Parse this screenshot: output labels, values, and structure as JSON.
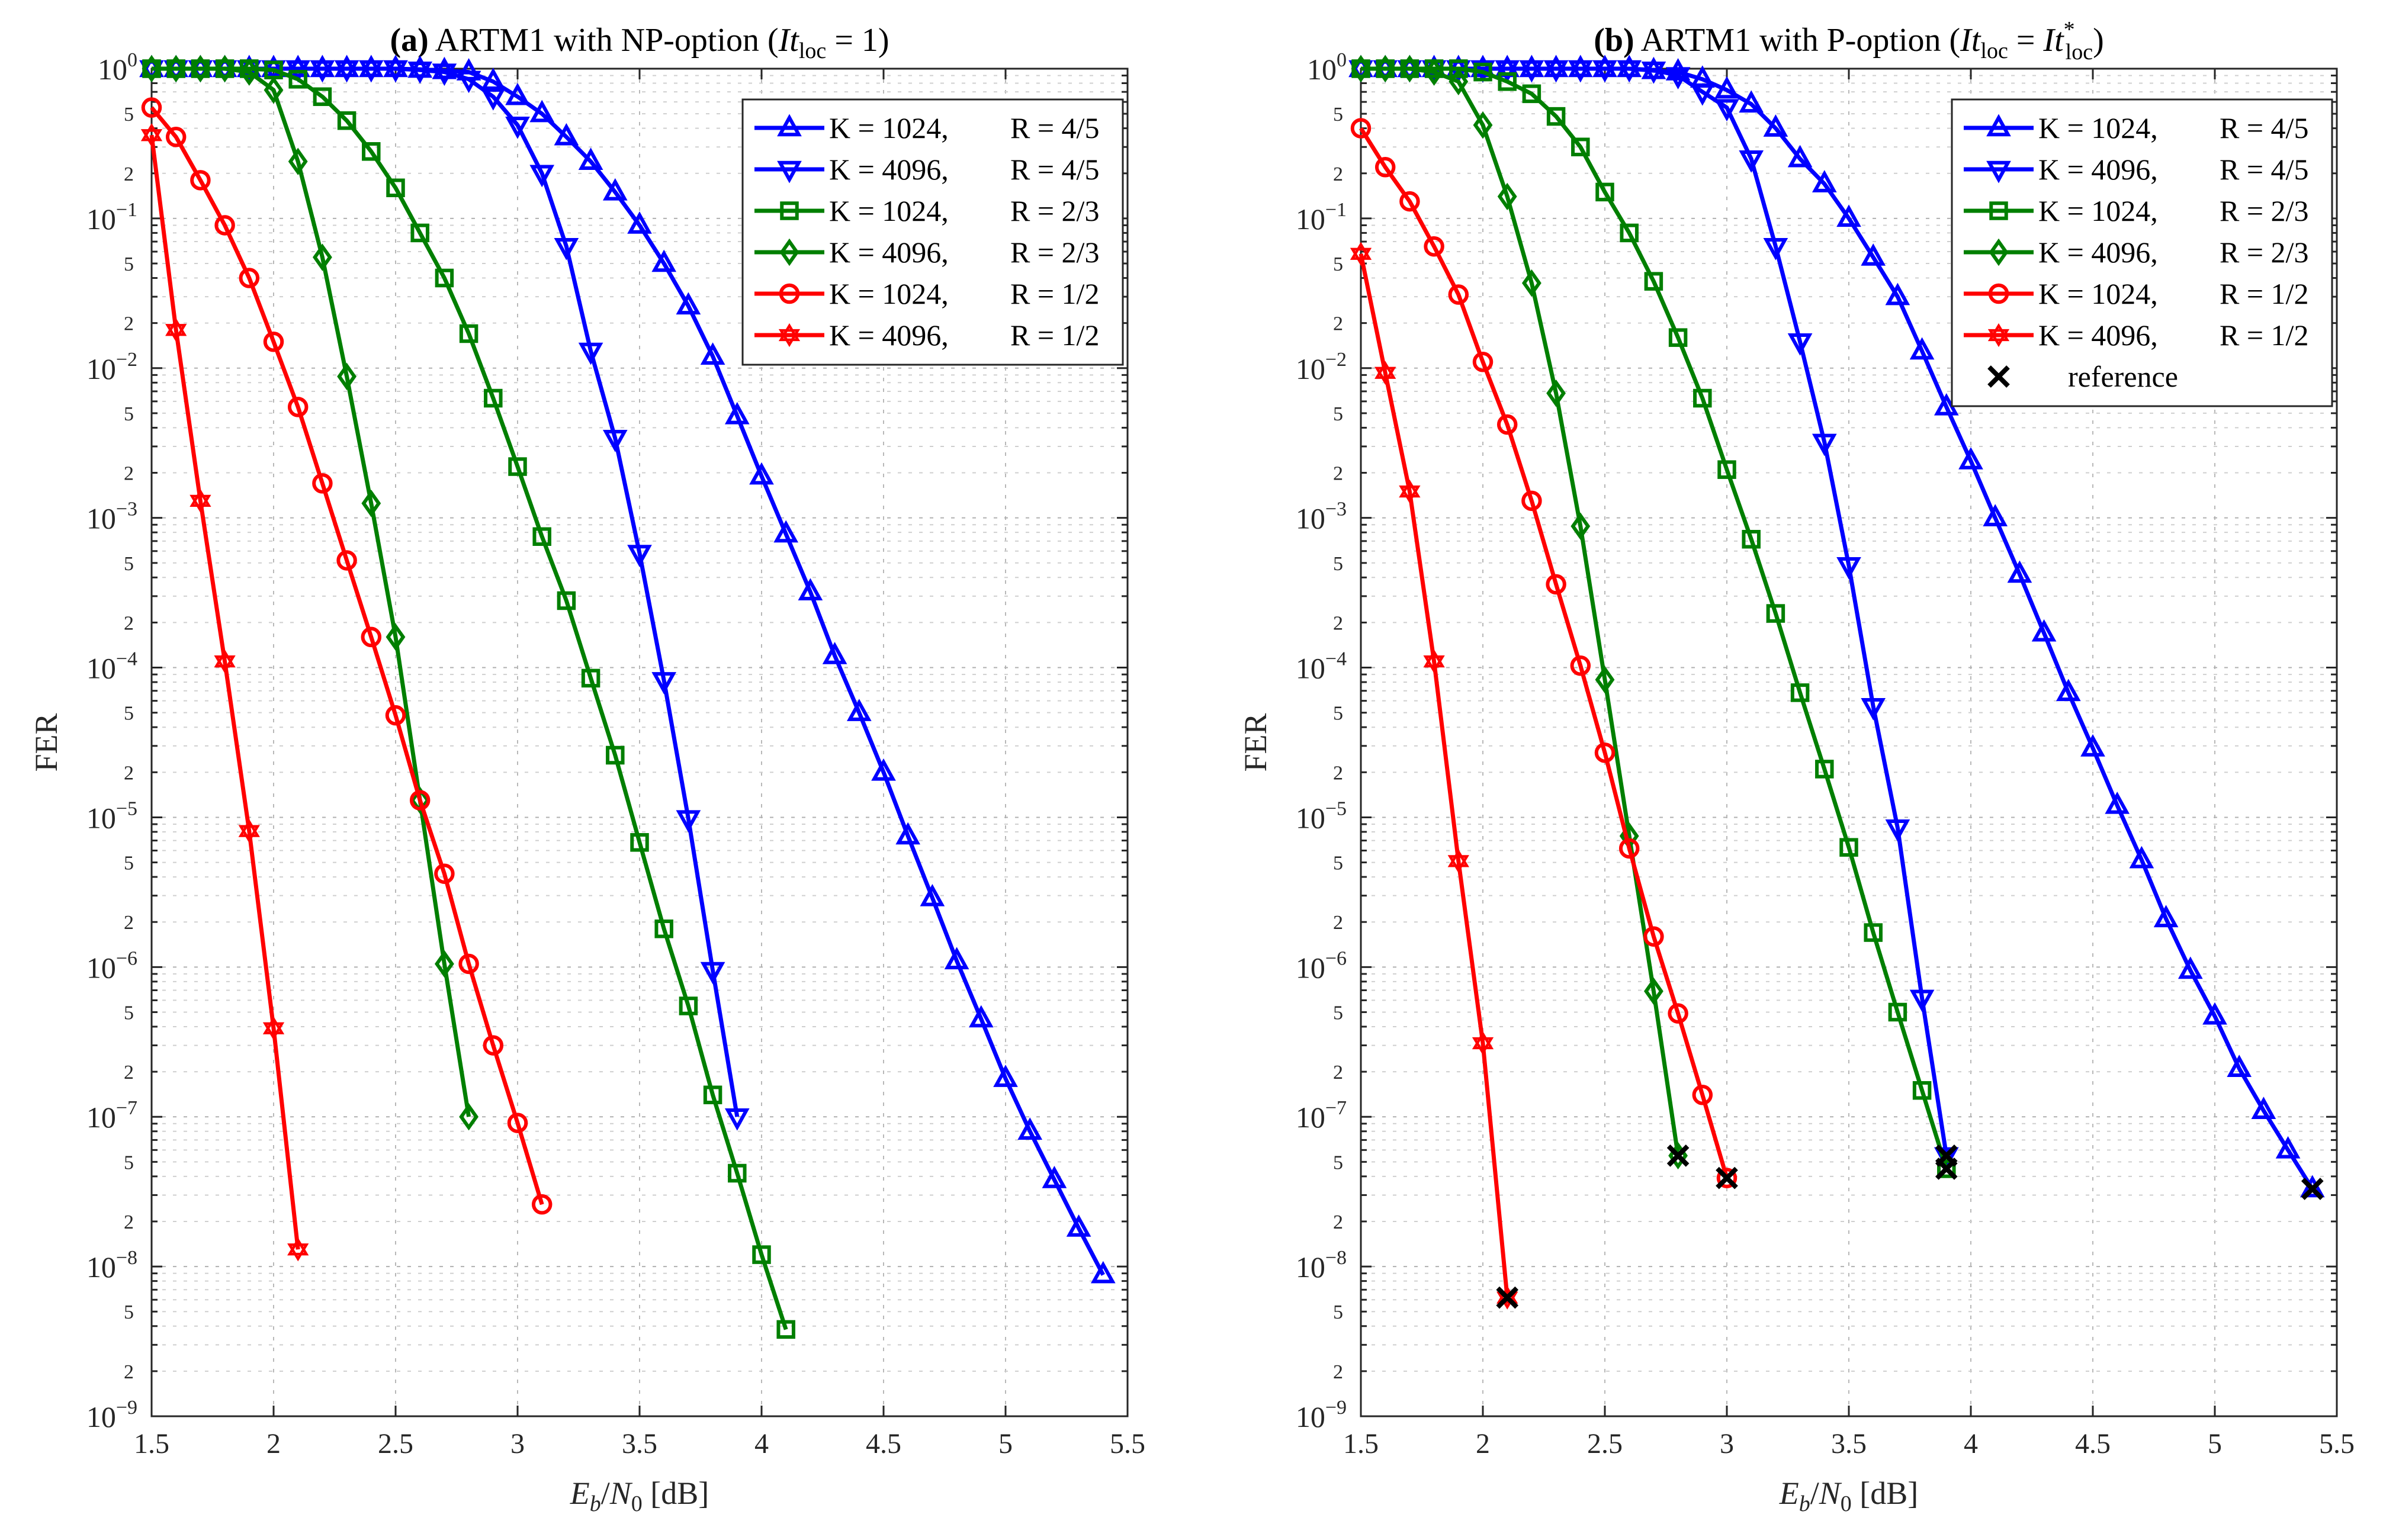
{
  "colors": {
    "blue": "#0000ff",
    "green": "#007f00",
    "red": "#ff0000",
    "reference": "#000000"
  },
  "chart_data": [
    {
      "type": "line",
      "panel_label": "(a)",
      "title_main": " ARTM1 with NP-option (",
      "title_var": "It",
      "title_sub": "loc",
      "title_eq": " = 1)",
      "xlabel_var": "E",
      "xlabel_sub_a": "b",
      "xlabel_slash": "/",
      "xlabel_var2": "N",
      "xlabel_sub_b": "0",
      "xlabel_unit": " [dB]",
      "ylabel": "FER",
      "xlim": [
        1.5,
        5.5
      ],
      "ylim_log10": [
        -9,
        0
      ],
      "xticks": [
        "1.5",
        "2",
        "2.5",
        "3",
        "3.5",
        "4",
        "4.5",
        "5",
        "5.5"
      ],
      "ydecade_base": "10",
      "ydecade_exponents": [
        "0",
        "−1",
        "−2",
        "−3",
        "−4",
        "−5",
        "−6",
        "−7",
        "−8",
        "−9"
      ],
      "yminor_labels": [
        "2",
        "5"
      ],
      "grid": true,
      "legend_position": "top-right",
      "series": [
        {
          "label_k": "K = 1024,",
          "label_r": "R = 4/5",
          "color": "#0000ff",
          "marker": "triangle-up",
          "x": [
            1.5,
            1.6,
            1.7,
            1.8,
            1.9,
            2.0,
            2.1,
            2.2,
            2.3,
            2.4,
            2.5,
            2.6,
            2.7,
            2.8,
            2.9,
            3.0,
            3.1,
            3.2,
            3.3,
            3.4,
            3.5,
            3.6,
            3.7,
            3.8,
            3.9,
            4.0,
            4.1,
            4.2,
            4.3,
            4.4,
            4.5,
            4.6,
            4.7,
            4.8,
            4.9,
            5.0,
            5.1,
            5.2,
            5.3,
            5.4
          ],
          "y": [
            1,
            1,
            1,
            1,
            1,
            1,
            1,
            1,
            1,
            1,
            1,
            0.99,
            0.97,
            0.95,
            0.82,
            0.65,
            0.5,
            0.35,
            0.24,
            0.15,
            0.09,
            0.05,
            0.026,
            0.012,
            0.0048,
            0.0019,
            0.00078,
            0.00032,
            0.00012,
            5e-05,
            2e-05,
            7.5e-06,
            2.9e-06,
            1.1e-06,
            4.5e-07,
            1.8e-07,
            8e-08,
            3.8e-08,
            1.8e-08,
            8.8e-09
          ]
        },
        {
          "label_k": "K = 4096,",
          "label_r": "R = 4/5",
          "color": "#0000ff",
          "marker": "triangle-down",
          "x": [
            1.5,
            1.6,
            1.7,
            1.8,
            1.9,
            2.0,
            2.1,
            2.2,
            2.3,
            2.4,
            2.5,
            2.6,
            2.7,
            2.8,
            2.9,
            3.0,
            3.1,
            3.2,
            3.3,
            3.4,
            3.5,
            3.6,
            3.7,
            3.8,
            3.9
          ],
          "y": [
            1,
            1,
            1,
            1,
            1,
            1,
            1,
            1,
            1,
            1,
            1,
            0.98,
            0.95,
            0.85,
            0.65,
            0.42,
            0.2,
            0.065,
            0.013,
            0.0034,
            0.00058,
            8.2e-05,
            9.8e-06,
            9.5e-07,
            1e-07
          ]
        },
        {
          "label_k": "K = 1024,",
          "label_r": "R = 2/3",
          "color": "#007f00",
          "marker": "square",
          "x": [
            1.5,
            1.6,
            1.7,
            1.8,
            1.9,
            2.0,
            2.1,
            2.2,
            2.3,
            2.4,
            2.5,
            2.6,
            2.7,
            2.8,
            2.9,
            3.0,
            3.1,
            3.2,
            3.3,
            3.4,
            3.5,
            3.6,
            3.7,
            3.8,
            3.9,
            4.0,
            4.1
          ],
          "y": [
            1,
            1,
            1,
            1,
            1,
            0.98,
            0.85,
            0.65,
            0.45,
            0.28,
            0.16,
            0.08,
            0.04,
            0.017,
            0.0063,
            0.0022,
            0.00075,
            0.00028,
            8.5e-05,
            2.6e-05,
            6.8e-06,
            1.8e-06,
            5.5e-07,
            1.4e-07,
            4.2e-08,
            1.2e-08,
            3.8e-09
          ]
        },
        {
          "label_k": "K = 4096,",
          "label_r": "R = 2/3",
          "color": "#007f00",
          "marker": "diamond",
          "x": [
            1.5,
            1.6,
            1.7,
            1.8,
            1.9,
            2.0,
            2.1,
            2.2,
            2.3,
            2.4,
            2.5,
            2.6,
            2.7,
            2.8
          ],
          "y": [
            1,
            1,
            1,
            1,
            0.95,
            0.72,
            0.24,
            0.055,
            0.0088,
            0.00125,
            0.00016,
            1.3e-05,
            1.05e-06,
            1e-07
          ]
        },
        {
          "label_k": "K = 1024,",
          "label_r": "R = 1/2",
          "color": "#ff0000",
          "marker": "circle",
          "x": [
            1.5,
            1.6,
            1.7,
            1.8,
            1.9,
            2.0,
            2.1,
            2.2,
            2.3,
            2.4,
            2.5,
            2.6,
            2.7,
            2.8,
            2.9,
            3.0,
            3.1
          ],
          "y": [
            0.55,
            0.35,
            0.18,
            0.09,
            0.04,
            0.015,
            0.0055,
            0.0017,
            0.00052,
            0.00016,
            4.8e-05,
            1.3e-05,
            4.2e-06,
            1.05e-06,
            3e-07,
            9.1e-08,
            2.6e-08
          ]
        },
        {
          "label_k": "K = 4096,",
          "label_r": "R = 1/2",
          "color": "#ff0000",
          "marker": "hexagram",
          "x": [
            1.5,
            1.6,
            1.7,
            1.8,
            1.9,
            2.0,
            2.1
          ],
          "y": [
            0.36,
            0.018,
            0.0013,
            0.00011,
            8.1e-06,
            3.9e-07,
            1.3e-08
          ]
        }
      ]
    },
    {
      "type": "line",
      "panel_label": "(b)",
      "title_main": " ARTM1 with P-option (",
      "title_var": "It",
      "title_sub": "loc",
      "title_eq": " = ",
      "title_var2": "It",
      "title_sup2": "*",
      "title_sub2": "loc",
      "title_end": ")",
      "xlabel_var": "E",
      "xlabel_sub_a": "b",
      "xlabel_slash": "/",
      "xlabel_var2": "N",
      "xlabel_sub_b": "0",
      "xlabel_unit": " [dB]",
      "ylabel": "FER",
      "xlim": [
        1.5,
        5.5
      ],
      "ylim_log10": [
        -9,
        0
      ],
      "xticks": [
        "1.5",
        "2",
        "2.5",
        "3",
        "3.5",
        "4",
        "4.5",
        "5",
        "5.5"
      ],
      "ydecade_base": "10",
      "ydecade_exponents": [
        "0",
        "−1",
        "−2",
        "−3",
        "−4",
        "−5",
        "−6",
        "−7",
        "−8",
        "−9"
      ],
      "yminor_labels": [
        "2",
        "5"
      ],
      "grid": true,
      "legend_position": "top-right",
      "reference_label": "reference",
      "series": [
        {
          "label_k": "K = 1024,",
          "label_r": "R = 4/5",
          "color": "#0000ff",
          "marker": "triangle-up",
          "x": [
            1.5,
            1.6,
            1.7,
            1.8,
            1.9,
            2.0,
            2.1,
            2.2,
            2.3,
            2.4,
            2.5,
            2.6,
            2.7,
            2.8,
            2.9,
            3.0,
            3.1,
            3.2,
            3.3,
            3.4,
            3.5,
            3.6,
            3.7,
            3.8,
            3.9,
            4.0,
            4.1,
            4.2,
            4.3,
            4.4,
            4.5,
            4.6,
            4.7,
            4.8,
            4.9,
            5.0,
            5.1,
            5.2,
            5.3,
            5.4
          ],
          "y": [
            1,
            1,
            1,
            1,
            1,
            1,
            1,
            1,
            1,
            1,
            1,
            1,
            0.97,
            0.95,
            0.85,
            0.72,
            0.58,
            0.4,
            0.25,
            0.17,
            0.1,
            0.055,
            0.03,
            0.013,
            0.0055,
            0.0024,
            0.001,
            0.00042,
            0.00017,
            6.8e-05,
            2.9e-05,
            1.2e-05,
            5.2e-06,
            2.1e-06,
            9.5e-07,
            4.7e-07,
            2.1e-07,
            1.1e-07,
            6e-08,
            3.3e-08
          ]
        },
        {
          "label_k": "K = 4096,",
          "label_r": "R = 4/5",
          "color": "#0000ff",
          "marker": "triangle-down",
          "x": [
            1.5,
            1.6,
            1.7,
            1.8,
            1.9,
            2.0,
            2.1,
            2.2,
            2.3,
            2.4,
            2.5,
            2.6,
            2.7,
            2.8,
            2.9,
            3.0,
            3.1,
            3.2,
            3.3,
            3.4,
            3.5,
            3.6,
            3.7,
            3.8,
            3.9
          ],
          "y": [
            1,
            1,
            1,
            1,
            1,
            1,
            1,
            1,
            1,
            1,
            1,
            1,
            0.98,
            0.9,
            0.7,
            0.55,
            0.25,
            0.065,
            0.015,
            0.0032,
            0.00048,
            5.5e-05,
            8.5e-06,
            6.2e-07,
            5.5e-08
          ]
        },
        {
          "label_k": "K = 1024,",
          "label_r": "R = 2/3",
          "color": "#007f00",
          "marker": "square",
          "x": [
            1.5,
            1.6,
            1.7,
            1.8,
            1.9,
            2.0,
            2.1,
            2.2,
            2.3,
            2.4,
            2.5,
            2.6,
            2.7,
            2.8,
            2.9,
            3.0,
            3.1,
            3.2,
            3.3,
            3.4,
            3.5,
            3.6,
            3.7,
            3.8,
            3.9
          ],
          "y": [
            1,
            1,
            1,
            1,
            1,
            0.95,
            0.82,
            0.68,
            0.48,
            0.3,
            0.15,
            0.08,
            0.038,
            0.016,
            0.0063,
            0.0021,
            0.00072,
            0.00023,
            6.8e-05,
            2.1e-05,
            6.3e-06,
            1.7e-06,
            5e-07,
            1.5e-07,
            4.5e-08
          ]
        },
        {
          "label_k": "K = 4096,",
          "label_r": "R = 2/3",
          "color": "#007f00",
          "marker": "diamond",
          "x": [
            1.5,
            1.6,
            1.7,
            1.8,
            1.9,
            2.0,
            2.1,
            2.2,
            2.3,
            2.4,
            2.5,
            2.6,
            2.7,
            2.8
          ],
          "y": [
            1,
            1,
            1,
            0.95,
            0.82,
            0.42,
            0.14,
            0.037,
            0.0068,
            0.00088,
            8.3e-05,
            7.5e-06,
            6.9e-07,
            5.5e-08
          ]
        },
        {
          "label_k": "K = 1024,",
          "label_r": "R = 1/2",
          "color": "#ff0000",
          "marker": "circle",
          "x": [
            1.5,
            1.6,
            1.7,
            1.8,
            1.9,
            2.0,
            2.1,
            2.2,
            2.3,
            2.4,
            2.5,
            2.6,
            2.7,
            2.8,
            2.9,
            3.0
          ],
          "y": [
            0.4,
            0.22,
            0.13,
            0.065,
            0.031,
            0.011,
            0.0042,
            0.0013,
            0.00036,
            0.000103,
            2.7e-05,
            6.2e-06,
            1.6e-06,
            4.9e-07,
            1.4e-07,
            3.9e-08
          ]
        },
        {
          "label_k": "K = 4096,",
          "label_r": "R = 1/2",
          "color": "#ff0000",
          "marker": "hexagram",
          "x": [
            1.5,
            1.6,
            1.7,
            1.8,
            1.9,
            2.0,
            2.1
          ],
          "y": [
            0.058,
            0.0093,
            0.0015,
            0.00011,
            5.1e-06,
            3.1e-07,
            6.2e-09
          ]
        }
      ],
      "reference_points": [
        {
          "x": 2.1,
          "y": 6.2e-09
        },
        {
          "x": 2.8,
          "y": 5.5e-08
        },
        {
          "x": 3.0,
          "y": 3.9e-08
        },
        {
          "x": 3.9,
          "y": 5.5e-08
        },
        {
          "x": 3.9,
          "y": 4.5e-08
        },
        {
          "x": 5.4,
          "y": 3.3e-08
        }
      ]
    }
  ]
}
